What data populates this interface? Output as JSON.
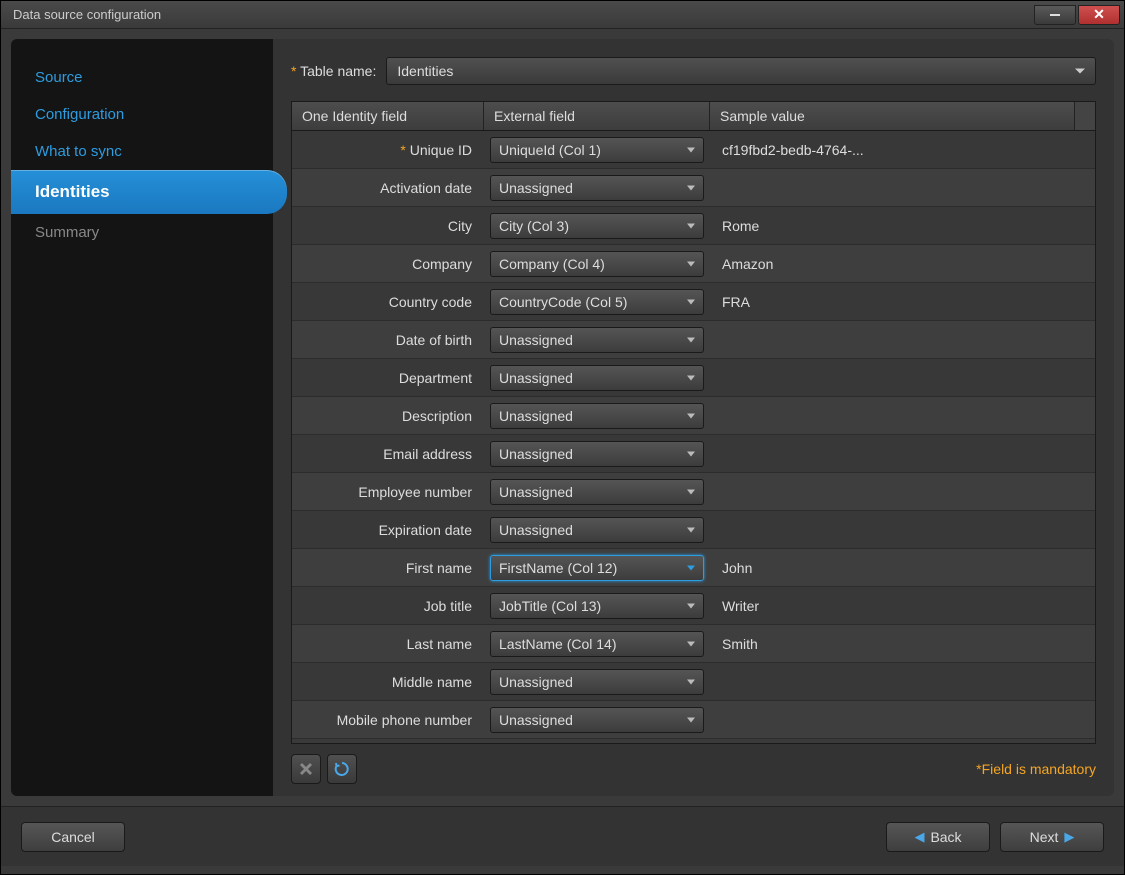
{
  "window": {
    "title": "Data source configuration"
  },
  "sidebar": {
    "items": [
      {
        "label": "Source",
        "state": "normal"
      },
      {
        "label": "Configuration",
        "state": "normal"
      },
      {
        "label": "What to sync",
        "state": "normal"
      },
      {
        "label": "Identities",
        "state": "active"
      },
      {
        "label": "Summary",
        "state": "disabled"
      }
    ]
  },
  "main": {
    "tableName": {
      "label": "Table name:",
      "value": "Identities"
    },
    "headers": {
      "col1": "One Identity field",
      "col2": "External field",
      "col3": "Sample value"
    },
    "rows": [
      {
        "field": "Unique ID",
        "required": true,
        "external": "UniqueId (Col 1)",
        "sample": "cf19fbd2-bedb-4764-..."
      },
      {
        "field": "Activation date",
        "required": false,
        "external": "Unassigned",
        "sample": ""
      },
      {
        "field": "City",
        "required": false,
        "external": "City (Col 3)",
        "sample": "Rome"
      },
      {
        "field": "Company",
        "required": false,
        "external": "Company (Col 4)",
        "sample": "Amazon"
      },
      {
        "field": "Country code",
        "required": false,
        "external": "CountryCode (Col 5)",
        "sample": "FRA"
      },
      {
        "field": "Date of birth",
        "required": false,
        "external": "Unassigned",
        "sample": ""
      },
      {
        "field": "Department",
        "required": false,
        "external": "Unassigned",
        "sample": ""
      },
      {
        "field": "Description",
        "required": false,
        "external": "Unassigned",
        "sample": ""
      },
      {
        "field": "Email address",
        "required": false,
        "external": "Unassigned",
        "sample": ""
      },
      {
        "field": "Employee number",
        "required": false,
        "external": "Unassigned",
        "sample": ""
      },
      {
        "field": "Expiration date",
        "required": false,
        "external": "Unassigned",
        "sample": ""
      },
      {
        "field": "First name",
        "required": false,
        "external": "FirstName (Col 12)",
        "sample": "John",
        "highlighted": true
      },
      {
        "field": "Job title",
        "required": false,
        "external": "JobTitle (Col 13)",
        "sample": "Writer"
      },
      {
        "field": "Last name",
        "required": false,
        "external": "LastName (Col 14)",
        "sample": "Smith"
      },
      {
        "field": "Middle name",
        "required": false,
        "external": "Unassigned",
        "sample": ""
      },
      {
        "field": "Mobile phone number",
        "required": false,
        "external": "Unassigned",
        "sample": ""
      }
    ],
    "mandatoryNote": "*Field is mandatory"
  },
  "footer": {
    "cancel": "Cancel",
    "back": "Back",
    "next": "Next"
  },
  "colors": {
    "accent": "#2d9ce0",
    "required": "#f5a623",
    "bg": "#333333",
    "sidebar_bg": "#141414"
  }
}
